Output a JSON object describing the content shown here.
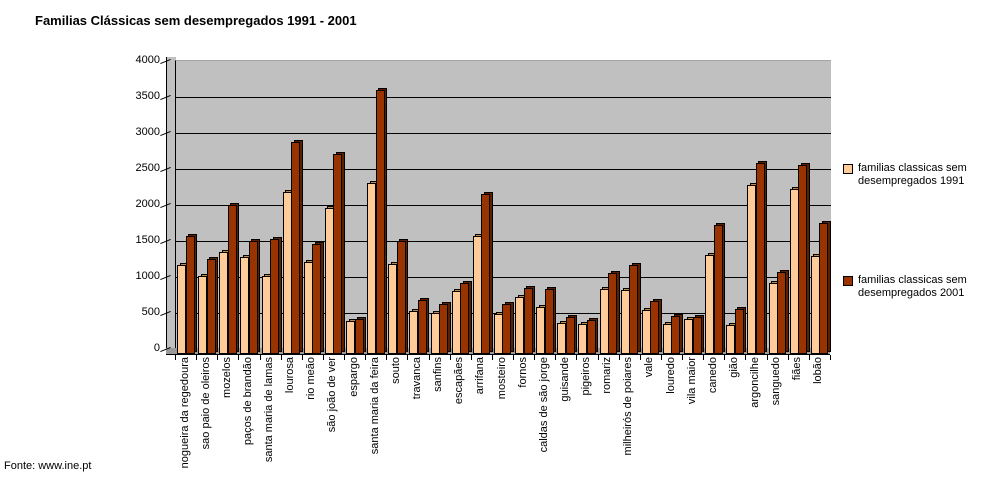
{
  "chart_data": {
    "type": "bar",
    "title": "Familias Clássicas sem desempregados 1991 - 2001",
    "source": "Fonte: www.ine.pt",
    "categories": [
      "nogueira da regedoura",
      "sao paio de oleiros",
      "mozelos",
      "paços de brandão",
      "santa maria de lamas",
      "lourosa",
      "rio meão",
      "são joão de ver",
      "espargo",
      "santa maria da feira",
      "souto",
      "travanca",
      "sanfins",
      "escapães",
      "arrifana",
      "mosteiro",
      "fornos",
      "caldas de são jorge",
      "guisande",
      "pigeiros",
      "romariz",
      "milheirós de poiares",
      "vale",
      "louredo",
      "vila maior",
      "canedo",
      "gião",
      "argoncilhe",
      "sanguedo",
      "fiães",
      "lobão"
    ],
    "series": [
      {
        "name": "familias classicas sem desempregados 1991",
        "color": "#FFCC99",
        "side_color": "#C08848",
        "values": [
          1150,
          1000,
          1340,
          1270,
          1000,
          2170,
          1190,
          1950,
          370,
          2290,
          1160,
          510,
          490,
          790,
          1560,
          470,
          710,
          570,
          350,
          330,
          820,
          800,
          530,
          340,
          400,
          1290,
          320,
          2260,
          900,
          2210,
          1280
        ]
      },
      {
        "name": "familias classicas sem desempregados 2001",
        "color": "#993300",
        "side_color": "#5C1F00",
        "values": [
          1550,
          1230,
          1990,
          1480,
          1510,
          2860,
          1450,
          2700,
          400,
          3580,
          1490,
          660,
          610,
          900,
          2140,
          610,
          830,
          820,
          430,
          385,
          1040,
          1150,
          650,
          450,
          430,
          1710,
          540,
          2570,
          1060,
          2540,
          1740
        ]
      }
    ],
    "ylim": [
      0,
      4000
    ],
    "ytick_step": 500,
    "yticks": [
      0,
      500,
      1000,
      1500,
      2000,
      2500,
      3000,
      3500,
      4000
    ],
    "grid": true,
    "legend_position": "right",
    "plot_bg": "#C0C0C0",
    "floor_color": "#9A9A9A"
  }
}
